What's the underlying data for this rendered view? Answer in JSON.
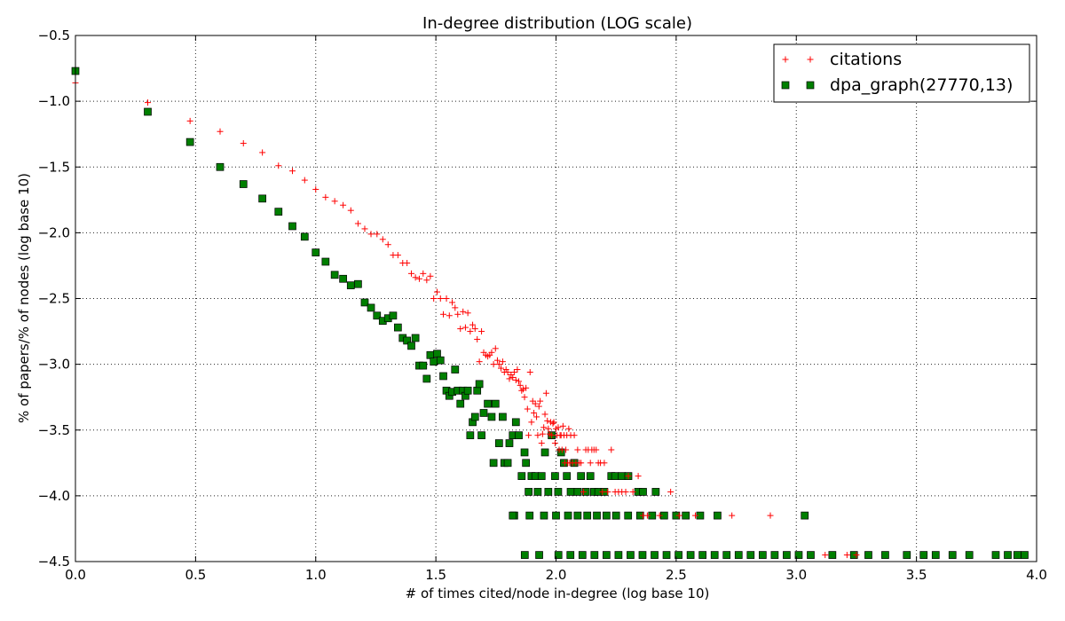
{
  "chart_data": {
    "type": "scatter",
    "title": "In-degree distribution (LOG scale)",
    "xlabel": "# of times cited/node in-degree (log base 10)",
    "ylabel": "% of papers/% of nodes (log base 10)",
    "xlim": [
      0.0,
      4.0
    ],
    "ylim": [
      -4.5,
      -0.5
    ],
    "xticks": [
      "0.0",
      "0.5",
      "1.0",
      "1.5",
      "2.0",
      "2.5",
      "3.0",
      "3.5",
      "4.0"
    ],
    "yticks": [
      "-0.5",
      "-1.0",
      "-1.5",
      "-2.0",
      "-2.5",
      "-3.0",
      "-3.5",
      "-4.0",
      "-4.5"
    ],
    "grid": true,
    "legend_position": "top-right",
    "series": [
      {
        "name": "citations",
        "marker": "plus",
        "color": "#ff0000",
        "points": [
          [
            0.0,
            -0.86
          ],
          [
            0.301,
            -1.01
          ],
          [
            0.477,
            -1.15
          ],
          [
            0.602,
            -1.23
          ],
          [
            0.699,
            -1.32
          ],
          [
            0.778,
            -1.39
          ],
          [
            0.845,
            -1.49
          ],
          [
            0.903,
            -1.53
          ],
          [
            0.954,
            -1.6
          ],
          [
            1.0,
            -1.67
          ],
          [
            1.041,
            -1.73
          ],
          [
            1.079,
            -1.76
          ],
          [
            1.114,
            -1.79
          ],
          [
            1.146,
            -1.83
          ],
          [
            1.176,
            -1.93
          ],
          [
            1.204,
            -1.97
          ],
          [
            1.23,
            -2.01
          ],
          [
            1.255,
            -2.01
          ],
          [
            1.279,
            -2.05
          ],
          [
            1.301,
            -2.09
          ],
          [
            1.322,
            -2.17
          ],
          [
            1.342,
            -2.17
          ],
          [
            1.362,
            -2.23
          ],
          [
            1.38,
            -2.23
          ],
          [
            1.398,
            -2.31
          ],
          [
            1.415,
            -2.34
          ],
          [
            1.431,
            -2.35
          ],
          [
            1.447,
            -2.31
          ],
          [
            1.462,
            -2.36
          ],
          [
            1.477,
            -2.33
          ],
          [
            1.491,
            -2.5
          ],
          [
            1.505,
            -2.45
          ],
          [
            1.519,
            -2.5
          ],
          [
            1.531,
            -2.62
          ],
          [
            1.544,
            -2.5
          ],
          [
            1.556,
            -2.63
          ],
          [
            1.568,
            -2.53
          ],
          [
            1.58,
            -2.57
          ],
          [
            1.591,
            -2.62
          ],
          [
            1.602,
            -2.73
          ],
          [
            1.613,
            -2.6
          ],
          [
            1.623,
            -2.72
          ],
          [
            1.633,
            -2.61
          ],
          [
            1.643,
            -2.75
          ],
          [
            1.653,
            -2.7
          ],
          [
            1.663,
            -2.73
          ],
          [
            1.672,
            -2.81
          ],
          [
            1.681,
            -2.98
          ],
          [
            1.69,
            -2.75
          ],
          [
            1.699,
            -2.91
          ],
          [
            1.708,
            -2.93
          ],
          [
            1.716,
            -2.94
          ],
          [
            1.724,
            -2.93
          ],
          [
            1.732,
            -2.91
          ],
          [
            1.74,
            -3.0
          ],
          [
            1.748,
            -2.88
          ],
          [
            1.756,
            -2.97
          ],
          [
            1.763,
            -3.0
          ],
          [
            1.771,
            -3.03
          ],
          [
            1.778,
            -2.98
          ],
          [
            1.785,
            -3.06
          ],
          [
            1.792,
            -3.04
          ],
          [
            1.799,
            -3.06
          ],
          [
            1.806,
            -3.11
          ],
          [
            1.813,
            -3.08
          ],
          [
            1.82,
            -3.1
          ],
          [
            1.826,
            -3.06
          ],
          [
            1.833,
            -3.12
          ],
          [
            1.839,
            -3.04
          ],
          [
            1.845,
            -3.13
          ],
          [
            1.851,
            -3.16
          ],
          [
            1.857,
            -3.2
          ],
          [
            1.863,
            -3.19
          ],
          [
            1.869,
            -3.25
          ],
          [
            1.875,
            -3.18
          ],
          [
            1.881,
            -3.34
          ],
          [
            1.886,
            -3.54
          ],
          [
            1.892,
            -3.06
          ],
          [
            1.898,
            -3.44
          ],
          [
            1.903,
            -3.28
          ],
          [
            1.908,
            -3.37
          ],
          [
            1.914,
            -3.3
          ],
          [
            1.919,
            -3.4
          ],
          [
            1.924,
            -3.54
          ],
          [
            1.929,
            -3.32
          ],
          [
            1.934,
            -3.28
          ],
          [
            1.94,
            -3.6
          ],
          [
            1.944,
            -3.53
          ],
          [
            1.949,
            -3.48
          ],
          [
            1.954,
            -3.38
          ],
          [
            1.959,
            -3.22
          ],
          [
            1.964,
            -3.43
          ],
          [
            1.968,
            -3.49
          ],
          [
            1.973,
            -3.53
          ],
          [
            1.978,
            -3.44
          ],
          [
            1.982,
            -3.54
          ],
          [
            1.987,
            -3.45
          ],
          [
            1.991,
            -3.44
          ],
          [
            1.996,
            -3.6
          ],
          [
            2.0,
            -3.49
          ],
          [
            2.004,
            -3.54
          ],
          [
            2.009,
            -3.48
          ],
          [
            2.013,
            -3.65
          ],
          [
            2.017,
            -3.54
          ],
          [
            2.021,
            -3.54
          ],
          [
            2.025,
            -3.65
          ],
          [
            2.029,
            -3.47
          ],
          [
            2.033,
            -3.54
          ],
          [
            2.037,
            -3.75
          ],
          [
            2.041,
            -3.65
          ],
          [
            2.045,
            -3.54
          ],
          [
            2.049,
            -3.75
          ],
          [
            2.053,
            -3.49
          ],
          [
            2.057,
            -3.75
          ],
          [
            2.061,
            -3.54
          ],
          [
            2.068,
            -3.75
          ],
          [
            2.076,
            -3.54
          ],
          [
            2.083,
            -3.75
          ],
          [
            2.09,
            -3.65
          ],
          [
            2.097,
            -3.75
          ],
          [
            2.104,
            -3.75
          ],
          [
            2.114,
            -3.97
          ],
          [
            2.124,
            -3.65
          ],
          [
            2.134,
            -3.65
          ],
          [
            2.143,
            -3.75
          ],
          [
            2.149,
            -3.65
          ],
          [
            2.158,
            -3.65
          ],
          [
            2.167,
            -3.65
          ],
          [
            2.176,
            -3.75
          ],
          [
            2.185,
            -3.75
          ],
          [
            2.193,
            -3.97
          ],
          [
            2.201,
            -3.75
          ],
          [
            2.215,
            -3.97
          ],
          [
            2.23,
            -3.65
          ],
          [
            2.246,
            -3.97
          ],
          [
            2.26,
            -3.97
          ],
          [
            2.274,
            -3.97
          ],
          [
            2.29,
            -3.97
          ],
          [
            2.301,
            -3.85
          ],
          [
            2.32,
            -3.97
          ],
          [
            2.342,
            -3.85
          ],
          [
            2.362,
            -4.15
          ],
          [
            2.38,
            -4.15
          ],
          [
            2.431,
            -4.15
          ],
          [
            2.477,
            -3.97
          ],
          [
            2.512,
            -4.15
          ],
          [
            2.58,
            -4.15
          ],
          [
            2.732,
            -4.15
          ],
          [
            2.892,
            -4.15
          ],
          [
            3.12,
            -4.45
          ],
          [
            3.211,
            -4.45
          ],
          [
            3.25,
            -4.45
          ]
        ]
      },
      {
        "name": "dpa_graph(27770,13)",
        "marker": "square",
        "color": "#007f00",
        "points": [
          [
            0.0,
            -0.77
          ],
          [
            0.301,
            -1.08
          ],
          [
            0.477,
            -1.31
          ],
          [
            0.602,
            -1.5
          ],
          [
            0.699,
            -1.63
          ],
          [
            0.778,
            -1.74
          ],
          [
            0.845,
            -1.84
          ],
          [
            0.903,
            -1.95
          ],
          [
            0.954,
            -2.03
          ],
          [
            1.0,
            -2.15
          ],
          [
            1.041,
            -2.22
          ],
          [
            1.079,
            -2.32
          ],
          [
            1.114,
            -2.35
          ],
          [
            1.146,
            -2.4
          ],
          [
            1.176,
            -2.39
          ],
          [
            1.204,
            -2.53
          ],
          [
            1.23,
            -2.57
          ],
          [
            1.255,
            -2.63
          ],
          [
            1.279,
            -2.67
          ],
          [
            1.301,
            -2.65
          ],
          [
            1.322,
            -2.63
          ],
          [
            1.342,
            -2.72
          ],
          [
            1.362,
            -2.8
          ],
          [
            1.38,
            -2.82
          ],
          [
            1.398,
            -2.86
          ],
          [
            1.415,
            -2.8
          ],
          [
            1.431,
            -3.01
          ],
          [
            1.447,
            -3.01
          ],
          [
            1.462,
            -3.11
          ],
          [
            1.477,
            -2.93
          ],
          [
            1.491,
            -2.98
          ],
          [
            1.505,
            -2.92
          ],
          [
            1.519,
            -2.97
          ],
          [
            1.531,
            -3.09
          ],
          [
            1.544,
            -3.2
          ],
          [
            1.556,
            -3.24
          ],
          [
            1.568,
            -3.21
          ],
          [
            1.58,
            -3.04
          ],
          [
            1.591,
            -3.2
          ],
          [
            1.602,
            -3.3
          ],
          [
            1.613,
            -3.2
          ],
          [
            1.623,
            -3.24
          ],
          [
            1.633,
            -3.2
          ],
          [
            1.643,
            -3.54
          ],
          [
            1.653,
            -3.44
          ],
          [
            1.663,
            -3.4
          ],
          [
            1.672,
            -3.2
          ],
          [
            1.681,
            -3.15
          ],
          [
            1.69,
            -3.54
          ],
          [
            1.699,
            -3.37
          ],
          [
            1.716,
            -3.3
          ],
          [
            1.732,
            -3.4
          ],
          [
            1.74,
            -3.75
          ],
          [
            1.748,
            -3.3
          ],
          [
            1.763,
            -3.6
          ],
          [
            1.778,
            -3.4
          ],
          [
            1.785,
            -3.75
          ],
          [
            1.799,
            -3.75
          ],
          [
            1.806,
            -3.6
          ],
          [
            1.82,
            -3.54
          ],
          [
            1.826,
            -4.15
          ],
          [
            1.833,
            -3.44
          ],
          [
            1.845,
            -3.54
          ],
          [
            1.857,
            -3.85
          ],
          [
            1.869,
            -3.67
          ],
          [
            1.875,
            -3.75
          ],
          [
            1.886,
            -3.97
          ],
          [
            1.898,
            -3.85
          ],
          [
            1.914,
            -3.85
          ],
          [
            1.924,
            -3.97
          ],
          [
            1.94,
            -3.85
          ],
          [
            1.954,
            -3.67
          ],
          [
            1.968,
            -3.97
          ],
          [
            1.982,
            -3.54
          ],
          [
            1.996,
            -3.85
          ],
          [
            2.009,
            -3.97
          ],
          [
            2.021,
            -3.67
          ],
          [
            2.033,
            -3.75
          ],
          [
            2.045,
            -3.85
          ],
          [
            2.061,
            -3.97
          ],
          [
            2.076,
            -3.75
          ],
          [
            2.09,
            -3.97
          ],
          [
            2.104,
            -3.85
          ],
          [
            2.124,
            -3.97
          ],
          [
            2.143,
            -3.85
          ],
          [
            2.158,
            -3.97
          ],
          [
            2.176,
            -3.97
          ],
          [
            2.201,
            -3.97
          ],
          [
            2.23,
            -3.85
          ],
          [
            2.246,
            -3.85
          ],
          [
            2.274,
            -3.85
          ],
          [
            2.301,
            -3.85
          ],
          [
            2.342,
            -3.97
          ],
          [
            2.362,
            -3.97
          ],
          [
            2.415,
            -3.97
          ],
          [
            2.6,
            -4.15
          ],
          [
            2.672,
            -4.15
          ],
          [
            3.035,
            -4.15
          ],
          [
            1.82,
            -4.15
          ],
          [
            1.89,
            -4.15
          ],
          [
            1.95,
            -4.15
          ],
          [
            2.0,
            -4.15
          ],
          [
            2.05,
            -4.15
          ],
          [
            2.09,
            -4.15
          ],
          [
            2.13,
            -4.15
          ],
          [
            2.17,
            -4.15
          ],
          [
            2.21,
            -4.15
          ],
          [
            2.25,
            -4.15
          ],
          [
            2.3,
            -4.15
          ],
          [
            2.35,
            -4.15
          ],
          [
            2.4,
            -4.15
          ],
          [
            2.45,
            -4.15
          ],
          [
            2.5,
            -4.15
          ],
          [
            2.54,
            -4.15
          ],
          [
            1.87,
            -4.45
          ],
          [
            1.93,
            -4.45
          ],
          [
            2.01,
            -4.45
          ],
          [
            2.06,
            -4.45
          ],
          [
            2.11,
            -4.45
          ],
          [
            2.16,
            -4.45
          ],
          [
            2.21,
            -4.45
          ],
          [
            2.26,
            -4.45
          ],
          [
            2.31,
            -4.45
          ],
          [
            2.36,
            -4.45
          ],
          [
            2.41,
            -4.45
          ],
          [
            2.46,
            -4.45
          ],
          [
            2.51,
            -4.45
          ],
          [
            2.56,
            -4.45
          ],
          [
            2.61,
            -4.45
          ],
          [
            2.66,
            -4.45
          ],
          [
            2.71,
            -4.45
          ],
          [
            2.76,
            -4.45
          ],
          [
            2.81,
            -4.45
          ],
          [
            2.86,
            -4.45
          ],
          [
            2.91,
            -4.45
          ],
          [
            2.96,
            -4.45
          ],
          [
            3.01,
            -4.45
          ],
          [
            3.06,
            -4.45
          ],
          [
            3.15,
            -4.45
          ],
          [
            3.24,
            -4.45
          ],
          [
            3.3,
            -4.45
          ],
          [
            3.37,
            -4.45
          ],
          [
            3.46,
            -4.45
          ],
          [
            3.53,
            -4.45
          ],
          [
            3.58,
            -4.45
          ],
          [
            3.65,
            -4.45
          ],
          [
            3.72,
            -4.45
          ],
          [
            3.83,
            -4.45
          ],
          [
            3.88,
            -4.45
          ],
          [
            3.92,
            -4.45
          ],
          [
            3.95,
            -4.45
          ]
        ]
      }
    ]
  }
}
